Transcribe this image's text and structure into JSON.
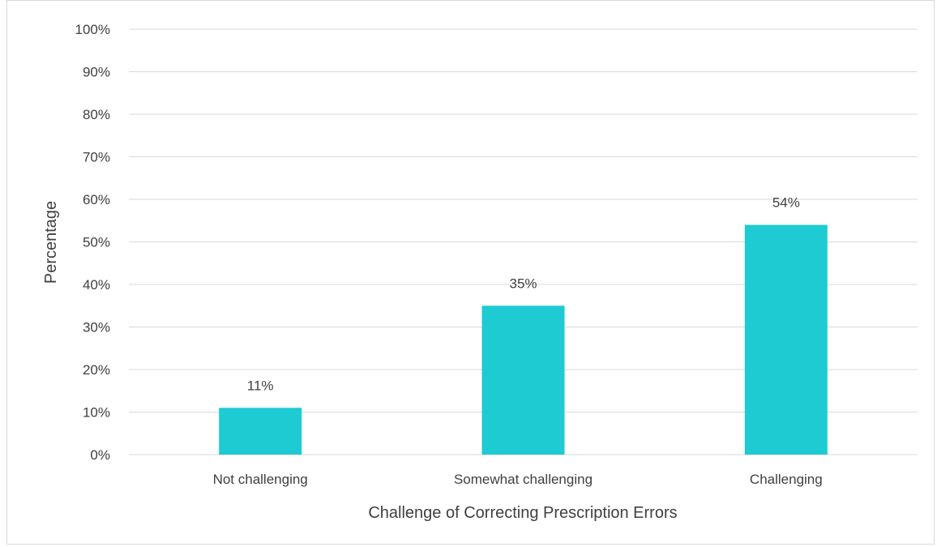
{
  "chart_data": {
    "type": "bar",
    "title": "",
    "xlabel": "Challenge of Correcting Prescription Errors",
    "ylabel": "Percentage",
    "categories": [
      "Not challenging",
      "Somewhat challenging",
      "Challenging"
    ],
    "values": [
      11,
      35,
      54
    ],
    "data_labels": [
      "11%",
      "35%",
      "54%"
    ],
    "ylim": [
      0,
      100
    ],
    "y_ticks": [
      0,
      10,
      20,
      30,
      40,
      50,
      60,
      70,
      80,
      90,
      100
    ],
    "y_tick_labels": [
      "0%",
      "10%",
      "20%",
      "30%",
      "40%",
      "50%",
      "60%",
      "70%",
      "80%",
      "90%",
      "100%"
    ],
    "grid": true,
    "legend": "none",
    "bar_color": "#1ecbd3",
    "gridline_color": "#d9d9d9",
    "text_color": "#404040"
  }
}
